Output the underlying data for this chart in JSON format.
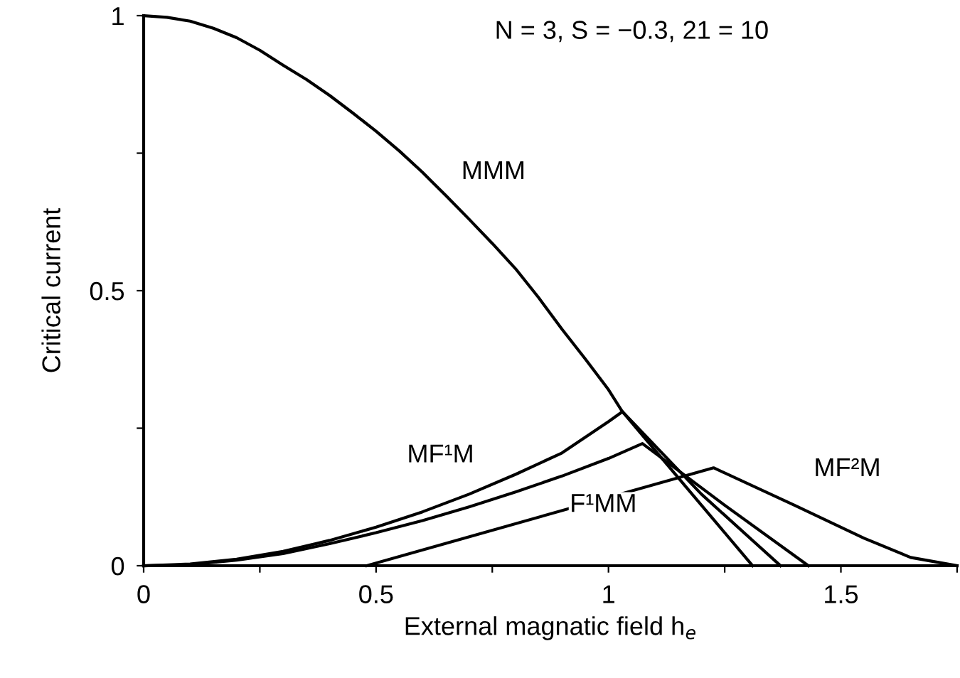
{
  "chart_data": {
    "type": "line",
    "xlabel": "External magnatic field h$_{e}$",
    "ylabel": "Critical current",
    "xlim": [
      0,
      1.75
    ],
    "ylim": [
      0,
      1
    ],
    "xticks": [
      0,
      {
        "value": 0.25,
        "label": null
      },
      0.5,
      {
        "value": 0.75,
        "label": null
      },
      1,
      {
        "value": 1.25,
        "label": null
      },
      1.5,
      {
        "value": 1.75,
        "label": null
      }
    ],
    "yticks": [
      0,
      {
        "value": 0.25,
        "label": null
      },
      0.5,
      {
        "value": 0.75,
        "label": null
      },
      1
    ],
    "grid": false,
    "legend": false,
    "marker": "none",
    "line_style": "solid",
    "series": [
      {
        "color": "#000000",
        "x": [
          0,
          0.05,
          0.1,
          0.15,
          0.2,
          0.25,
          0.3,
          0.35,
          0.4,
          0.45,
          0.5,
          0.55,
          0.6,
          0.65,
          0.7,
          0.75,
          0.8,
          0.85,
          0.9,
          0.95,
          1.0,
          1.03,
          1.1,
          1.2,
          1.31
        ],
        "values": [
          1,
          0.997,
          0.99,
          0.977,
          0.96,
          0.937,
          0.91,
          0.884,
          0.855,
          0.823,
          0.79,
          0.754,
          0.715,
          0.673,
          0.63,
          0.586,
          0.54,
          0.487,
          0.43,
          0.376,
          0.32,
          0.28,
          0.21,
          0.11,
          0
        ]
      },
      {
        "color": "#000000",
        "x": [
          0,
          0.1,
          0.2,
          0.3,
          0.4,
          0.5,
          0.6,
          0.7,
          0.8,
          0.9,
          1.0,
          1.03,
          1.2,
          1.37
        ],
        "values": [
          0,
          0.003,
          0.012,
          0.026,
          0.046,
          0.07,
          0.098,
          0.13,
          0.166,
          0.205,
          0.262,
          0.28,
          0.13,
          0
        ]
      },
      {
        "color": "#000000",
        "x": [
          0,
          0.1,
          0.2,
          0.3,
          0.4,
          0.5,
          0.6,
          0.7,
          0.8,
          0.9,
          1.0,
          1.073,
          1.25,
          1.43
        ],
        "values": [
          0,
          0.002,
          0.01,
          0.022,
          0.04,
          0.06,
          0.082,
          0.107,
          0.134,
          0.163,
          0.195,
          0.222,
          0.11,
          0
        ]
      },
      {
        "color": "#000000",
        "x": [
          0.48,
          1.226,
          1.4,
          1.55,
          1.65,
          1.75
        ],
        "values": [
          0,
          0.178,
          0.11,
          0.05,
          0.015,
          0
        ]
      }
    ],
    "annotations": [
      "N = 3, S = −0.3, 21 = 10",
      "MMM",
      "MF¹M",
      "F¹MM",
      "MF²M"
    ]
  }
}
